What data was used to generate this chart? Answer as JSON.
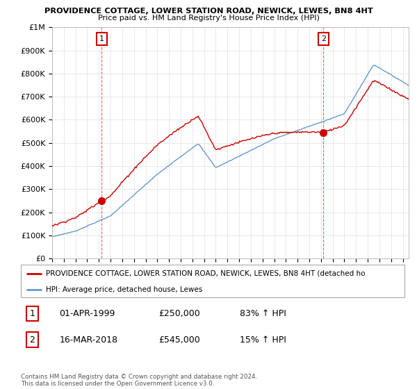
{
  "title1": "PROVIDENCE COTTAGE, LOWER STATION ROAD, NEWICK, LEWES, BN8 4HT",
  "title2": "Price paid vs. HM Land Registry's House Price Index (HPI)",
  "legend_line1": "PROVIDENCE COTTAGE, LOWER STATION ROAD, NEWICK, LEWES, BN8 4HT (detached ho",
  "legend_line2": "HPI: Average price, detached house, Lewes",
  "footer": "Contains HM Land Registry data © Crown copyright and database right 2024.\nThis data is licensed under the Open Government Licence v3.0.",
  "sale1_label": "1",
  "sale1_date": "01-APR-1999",
  "sale1_price": "£250,000",
  "sale1_pct": "83% ↑ HPI",
  "sale1_t": 1999.25,
  "sale1_val": 250000,
  "sale2_label": "2",
  "sale2_date": "16-MAR-2018",
  "sale2_price": "£545,000",
  "sale2_pct": "15% ↑ HPI",
  "sale2_t": 2018.21,
  "sale2_val": 545000,
  "hpi_color": "#6699cc",
  "price_color": "#cc0000",
  "vline_color": "#cc0000",
  "ylim": [
    0,
    1000000
  ],
  "yticks": [
    0,
    100000,
    200000,
    300000,
    400000,
    500000,
    600000,
    700000,
    800000,
    900000,
    1000000
  ],
  "ytick_labels": [
    "£0",
    "£100K",
    "£200K",
    "£300K",
    "£400K",
    "£500K",
    "£600K",
    "£700K",
    "£800K",
    "£900K",
    "£1M"
  ],
  "xstart": 1995.0,
  "xend": 2025.5,
  "num_box_color": "#cc0000",
  "bg_color": "#ffffff",
  "grid_color": "#e0e0e0"
}
